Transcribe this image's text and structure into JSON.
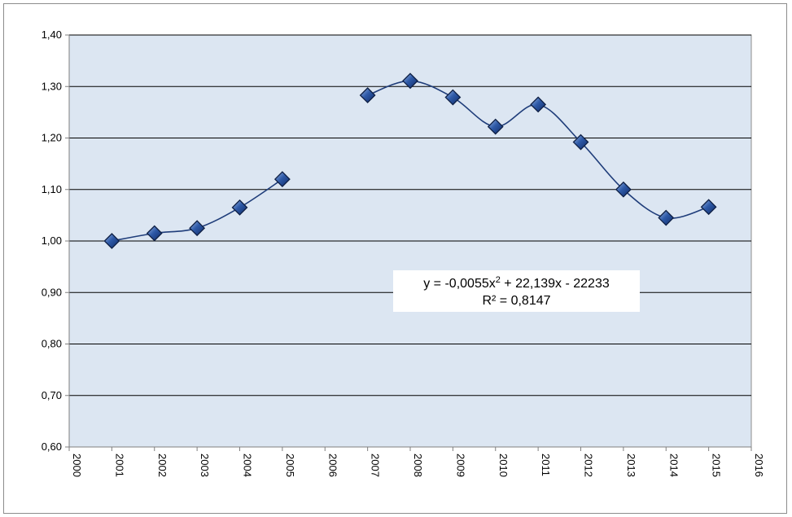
{
  "chart_data": {
    "type": "scatter",
    "title": "",
    "xlabel": "",
    "ylabel": "",
    "xlim": [
      2000,
      2016
    ],
    "ylim": [
      0.6,
      1.4
    ],
    "x_ticks": [
      "2000",
      "2001",
      "2002",
      "2003",
      "2004",
      "2005",
      "2006",
      "2007",
      "2008",
      "2009",
      "2010",
      "2011",
      "2012",
      "2013",
      "2014",
      "2015",
      "2016"
    ],
    "y_ticks": [
      "0,60",
      "0,70",
      "0,80",
      "0,90",
      "1,00",
      "1,10",
      "1,20",
      "1,30",
      "1,40"
    ],
    "grid": "horizontal",
    "legend": "none",
    "series": [
      {
        "segments": [
          {
            "x": [
              2001,
              2002,
              2003,
              2004,
              2005
            ],
            "y": [
              1.0,
              1.015,
              1.025,
              1.065,
              1.12
            ]
          },
          {
            "x": [
              2007,
              2008,
              2009,
              2010,
              2011,
              2012,
              2013,
              2014,
              2015
            ],
            "y": [
              1.283,
              1.311,
              1.279,
              1.222,
              1.265,
              1.192,
              1.1,
              1.045,
              1.066
            ]
          }
        ],
        "marker": "diamond",
        "smoothed": true,
        "color": "#1f3d7a"
      }
    ],
    "trendline": {
      "type": "polynomial",
      "order": 2,
      "color": "#8c8c8c",
      "coefficients": {
        "a": -0.0055,
        "b": 22.139,
        "c": -22233
      },
      "x_range": [
        2001,
        2015
      ],
      "equation_text": "y = -0,0055x² + 22,139x - 22233",
      "r2_text": "R² = 0,8147"
    },
    "colors": {
      "plot_background": "#dce6f2",
      "gridline": "#000000",
      "marker_fill": "#2e5aa8",
      "marker_edge": "#0e1f44",
      "line": "#1f3d7a"
    }
  }
}
